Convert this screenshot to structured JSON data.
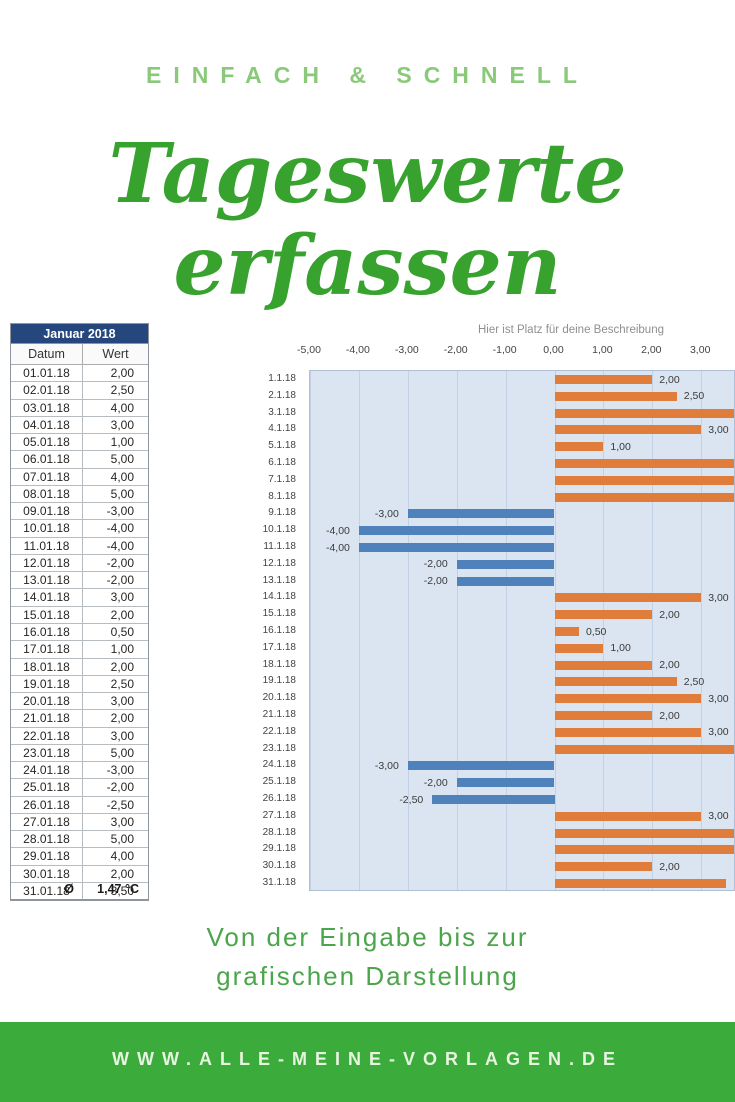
{
  "header": {
    "tagline": "EINFACH & SCHNELL",
    "title_line1": "Tageswerte",
    "title_line2": "erfassen"
  },
  "table": {
    "title": "Januar 2018",
    "columns": [
      "Datum",
      "Wert"
    ],
    "rows": [
      [
        "01.01.18",
        "2,00"
      ],
      [
        "02.01.18",
        "2,50"
      ],
      [
        "03.01.18",
        "4,00"
      ],
      [
        "04.01.18",
        "3,00"
      ],
      [
        "05.01.18",
        "1,00"
      ],
      [
        "06.01.18",
        "5,00"
      ],
      [
        "07.01.18",
        "4,00"
      ],
      [
        "08.01.18",
        "5,00"
      ],
      [
        "09.01.18",
        "-3,00"
      ],
      [
        "10.01.18",
        "-4,00"
      ],
      [
        "11.01.18",
        "-4,00"
      ],
      [
        "12.01.18",
        "-2,00"
      ],
      [
        "13.01.18",
        "-2,00"
      ],
      [
        "14.01.18",
        "3,00"
      ],
      [
        "15.01.18",
        "2,00"
      ],
      [
        "16.01.18",
        "0,50"
      ],
      [
        "17.01.18",
        "1,00"
      ],
      [
        "18.01.18",
        "2,00"
      ],
      [
        "19.01.18",
        "2,50"
      ],
      [
        "20.01.18",
        "3,00"
      ],
      [
        "21.01.18",
        "2,00"
      ],
      [
        "22.01.18",
        "3,00"
      ],
      [
        "23.01.18",
        "5,00"
      ],
      [
        "24.01.18",
        "-3,00"
      ],
      [
        "25.01.18",
        "-2,00"
      ],
      [
        "26.01.18",
        "-2,50"
      ],
      [
        "27.01.18",
        "3,00"
      ],
      [
        "28.01.18",
        "5,00"
      ],
      [
        "29.01.18",
        "4,00"
      ],
      [
        "30.01.18",
        "2,00"
      ],
      [
        "31.01.18",
        "3,50"
      ]
    ],
    "footer": {
      "symbol": "Ø",
      "value": "1,47 °C"
    }
  },
  "chart_data": {
    "type": "bar",
    "orientation": "horizontal",
    "title": "Hier ist Platz für deine Beschreibung",
    "categories": [
      "1.1.18",
      "2.1.18",
      "3.1.18",
      "4.1.18",
      "5.1.18",
      "6.1.18",
      "7.1.18",
      "8.1.18",
      "9.1.18",
      "10.1.18",
      "11.1.18",
      "12.1.18",
      "13.1.18",
      "14.1.18",
      "15.1.18",
      "16.1.18",
      "17.1.18",
      "18.1.18",
      "19.1.18",
      "20.1.18",
      "21.1.18",
      "22.1.18",
      "23.1.18",
      "24.1.18",
      "25.1.18",
      "26.1.18",
      "27.1.18",
      "28.1.18",
      "29.1.18",
      "30.1.18",
      "31.1.18"
    ],
    "values": [
      2,
      2.5,
      4,
      3,
      1,
      5,
      4,
      5,
      -3,
      -4,
      -4,
      -2,
      -2,
      3,
      2,
      0.5,
      1,
      2,
      2.5,
      3,
      2,
      3,
      5,
      -3,
      -2,
      -2.5,
      3,
      5,
      4,
      2,
      3.5
    ],
    "x_ticks": [
      "-5,00",
      "-4,00",
      "-3,00",
      "-2,00",
      "-1,00",
      "0,00",
      "1,00",
      "2,00",
      "3,00"
    ],
    "x_tick_values": [
      -5,
      -4,
      -3,
      -2,
      -1,
      0,
      1,
      2,
      3
    ],
    "xlim": [
      -5,
      3.7
    ],
    "grid": true,
    "data_labels": true,
    "legend": "none",
    "positive_color": "#e07d3a",
    "negative_color": "#4f81bb",
    "plot_background": "#dbe5f1",
    "gridline_color": "#c3d1e6"
  },
  "sub_caption": {
    "line1": "Von der Eingabe bis zur",
    "line2": "grafischen Darstellung"
  },
  "bottom_bar": {
    "url": "WWW.ALLE-MEINE-VORLAGEN.DE",
    "background": "#3bab3b"
  },
  "colors": {
    "accent_green": "#38a22f",
    "light_green": "#8bc97a",
    "table_header_bg": "#26477d"
  }
}
